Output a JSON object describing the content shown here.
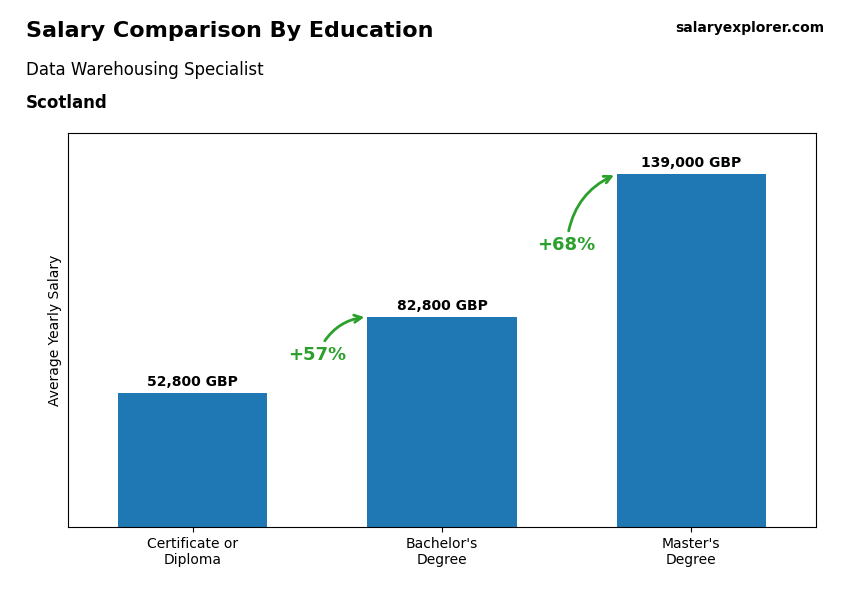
{
  "chart_data": {
    "type": "bar",
    "title": "Salary Comparison By Education",
    "subtitle": "Data Warehousing Specialist",
    "ylabel": "Average Yearly Salary",
    "categories": [
      "Certificate or\nDiploma",
      "Bachelor's\nDegree",
      "Master's\nDegree"
    ],
    "values": [
      52800,
      82800,
      139000
    ],
    "value_labels": [
      "52,800 GBP",
      "82,800 GBP",
      "139,000 GBP"
    ],
    "data_labels": true,
    "ylim": [
      0,
      155000
    ],
    "tick_labels": "x",
    "annotations": [
      {
        "text": "+57%",
        "from": 0,
        "to": 1
      },
      {
        "text": "+68%",
        "from": 1,
        "to": 2
      },
      {
        "text": "Scotland"
      },
      {
        "text": "salaryexplorer.com"
      }
    ]
  }
}
